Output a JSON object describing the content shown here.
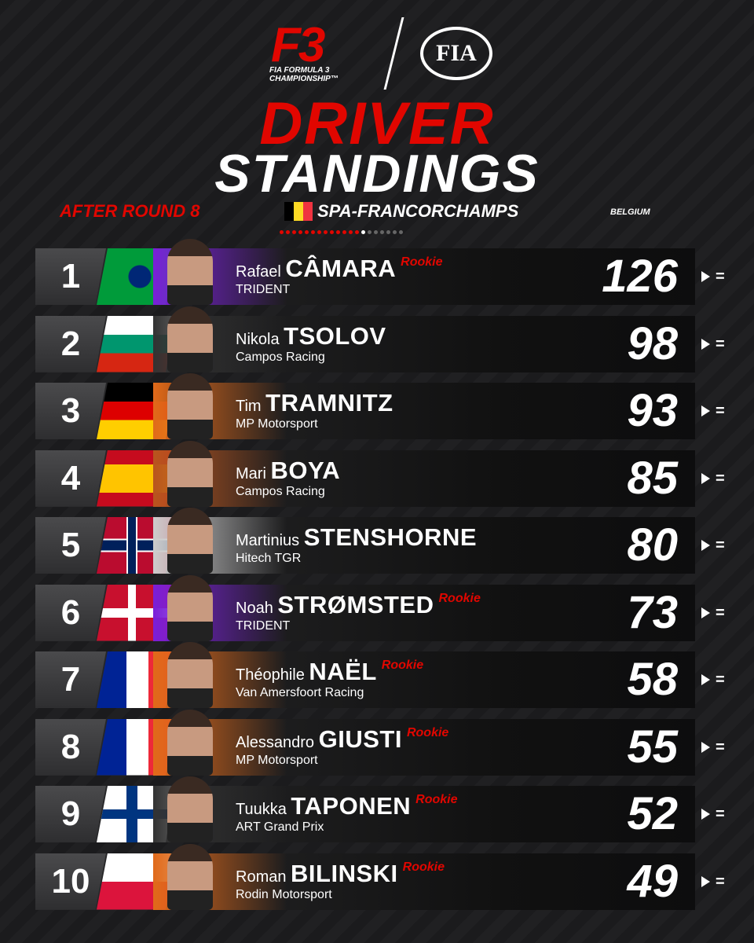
{
  "header": {
    "series_logo": "F3",
    "series_line1": "FIA FORMULA 3",
    "series_line2": "CHAMPIONSHIP™",
    "federation_logo": "FIA"
  },
  "title": {
    "line1": "DRIVER",
    "line2": "STANDINGS"
  },
  "subtitle": {
    "round": "AFTER ROUND 8",
    "circuit": "SPA-FRANCORCHAMPS",
    "country": "BELGIUM"
  },
  "standings": [
    {
      "position": 1,
      "first_name": "Rafael",
      "last_name": "CÂMARA",
      "rookie": "Rookie",
      "team": "TRIDENT",
      "points": 126,
      "change": "="
    },
    {
      "position": 2,
      "first_name": "Nikola",
      "last_name": "TSOLOV",
      "team": "Campos Racing",
      "points": 98,
      "change": "="
    },
    {
      "position": 3,
      "first_name": "Tim",
      "last_name": "TRAMNITZ",
      "team": "MP Motorsport",
      "points": 93,
      "change": "="
    },
    {
      "position": 4,
      "first_name": "Mari",
      "last_name": "BOYA",
      "team": "Campos Racing",
      "points": 85,
      "change": "="
    },
    {
      "position": 5,
      "first_name": "Martinius",
      "last_name": "STENSHORNE",
      "team": "Hitech TGR",
      "points": 80,
      "change": "="
    },
    {
      "position": 6,
      "first_name": "Noah",
      "last_name": "STRØMSTED",
      "rookie": "Rookie",
      "team": "TRIDENT",
      "points": 73,
      "change": "="
    },
    {
      "position": 7,
      "first_name": "Théophile",
      "last_name": "NAËL",
      "rookie": "Rookie",
      "team": "Van Amersfoort Racing",
      "points": 58,
      "change": "="
    },
    {
      "position": 8,
      "first_name": "Alessandro",
      "last_name": "GIUSTI",
      "rookie": "Rookie",
      "team": "MP Motorsport",
      "points": 55,
      "change": "="
    },
    {
      "position": 9,
      "first_name": "Tuukka",
      "last_name": "TAPONEN",
      "rookie": "Rookie",
      "team": "ART Grand Prix",
      "points": 52,
      "change": "="
    },
    {
      "position": 10,
      "first_name": "Roman",
      "last_name": "BILINSKI",
      "rookie": "Rookie",
      "team": "Rodin Motorsport",
      "points": 49,
      "change": "="
    }
  ]
}
